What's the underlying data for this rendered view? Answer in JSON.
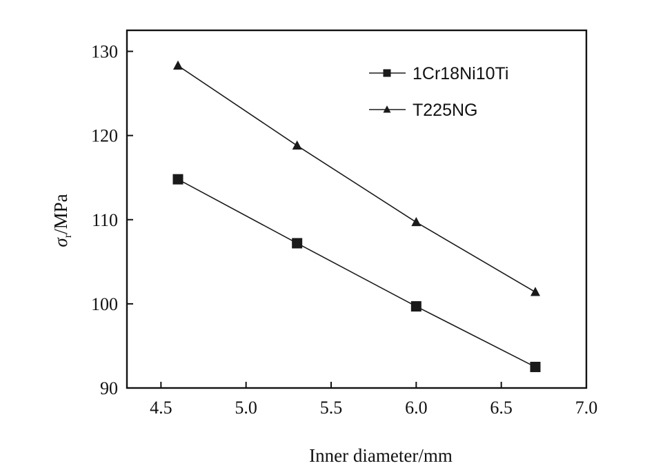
{
  "chart_data": {
    "type": "line",
    "x": [
      4.6,
      5.3,
      6.0,
      6.7
    ],
    "series": [
      {
        "name": "1Cr18Ni10Ti",
        "marker": "square",
        "values": [
          114.8,
          107.2,
          99.7,
          92.5
        ]
      },
      {
        "name": "T225NG",
        "marker": "triangle",
        "values": [
          128.3,
          118.8,
          109.7,
          101.4
        ]
      }
    ],
    "xlabel": "Inner diameter/mm",
    "ylabel_main": "σ",
    "ylabel_sub": "r",
    "ylabel_rest": "/MPa",
    "xlim": [
      4.3,
      7.0
    ],
    "ylim": [
      90,
      132.5
    ],
    "xticks": [
      "4.5",
      "5.0",
      "5.5",
      "6.0",
      "6.5",
      "7.0"
    ],
    "yticks": [
      "90",
      "100",
      "110",
      "120",
      "130"
    ],
    "grid": false,
    "legend_position": "top-right",
    "line_color": "#1a1a1a"
  }
}
